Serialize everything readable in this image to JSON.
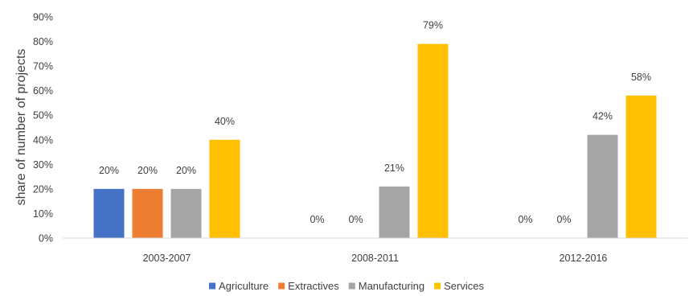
{
  "chart_data": {
    "type": "bar",
    "title": "",
    "xlabel": "",
    "ylabel": "share of number of projects",
    "categories": [
      "2003-2007",
      "2008-2011",
      "2012-2016"
    ],
    "series": [
      {
        "name": "Agriculture",
        "color": "#4472C4",
        "values": [
          20,
          0,
          0
        ],
        "labels": [
          "20%",
          "0%",
          "0%"
        ]
      },
      {
        "name": "Extractives",
        "color": "#ED7D31",
        "values": [
          20,
          0,
          0
        ],
        "labels": [
          "20%",
          "0%",
          "0%"
        ]
      },
      {
        "name": "Manufacturing",
        "color": "#A5A5A5",
        "values": [
          20,
          21,
          42
        ],
        "labels": [
          "20%",
          "21%",
          "42%"
        ]
      },
      {
        "name": "Services",
        "color": "#FFC000",
        "values": [
          40,
          79,
          58
        ],
        "labels": [
          "40%",
          "79%",
          "58%"
        ]
      }
    ],
    "ylim": [
      0,
      90
    ],
    "yticks": [
      0,
      10,
      20,
      30,
      40,
      50,
      60,
      70,
      80,
      90
    ],
    "ytick_labels": [
      "0%",
      "10%",
      "20%",
      "30%",
      "40%",
      "50%",
      "60%",
      "70%",
      "80%",
      "90%"
    ],
    "grid": false,
    "legend_position": "bottom"
  }
}
